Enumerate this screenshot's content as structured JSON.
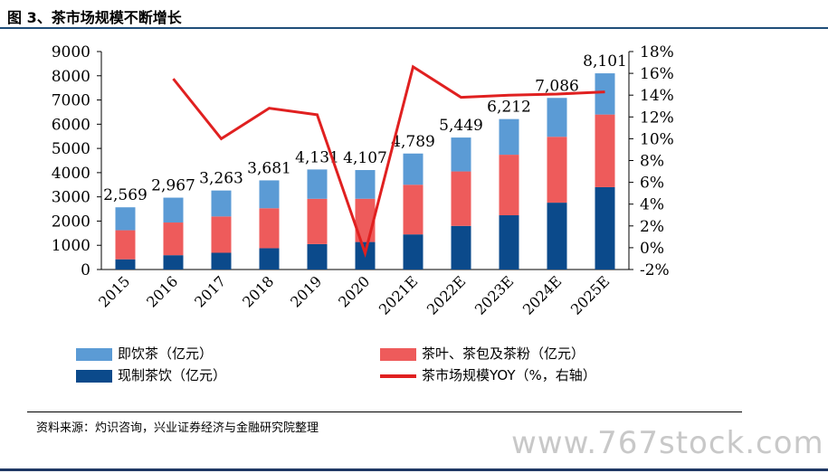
{
  "title": "图 3、茶市场规模不断增长",
  "source": "资料来源：灼识咨询，兴业证券经济与金融研究院整理",
  "watermark": "www.767stock.com",
  "chart_data": {
    "type": "bar",
    "stacked": true,
    "categories": [
      "2015",
      "2016",
      "2017",
      "2018",
      "2019",
      "2020",
      "2021E",
      "2022E",
      "2023E",
      "2024E",
      "2025E"
    ],
    "series": [
      {
        "name": "现制茶饮（亿元）",
        "color": "#0b4a8b",
        "values": [
          422,
          591,
          691,
          880,
          1050,
          1136,
          1450,
          1800,
          2240,
          2760,
          3400
        ]
      },
      {
        "name": "茶叶、茶包及茶粉（亿元）",
        "color": "#ee5b5b",
        "values": [
          1200,
          1350,
          1500,
          1650,
          1870,
          1786,
          2050,
          2250,
          2500,
          2720,
          3000
        ]
      },
      {
        "name": "即饮茶（亿元）",
        "color": "#5b9bd5",
        "values": [
          947,
          1026,
          1072,
          1151,
          1211,
          1185,
          1289,
          1399,
          1472,
          1606,
          1701
        ]
      }
    ],
    "totals": [
      2569,
      2967,
      3263,
      3681,
      4131,
      4107,
      4789,
      5449,
      6212,
      7086,
      8101
    ],
    "total_labels": [
      "2,569",
      "2,967",
      "3,263",
      "3,681",
      "4,131",
      "4,107",
      "4,789",
      "5,449",
      "6,212",
      "7,086",
      "8,101"
    ],
    "line_series": {
      "name": "茶市场规模YOY（%，右轴）",
      "color": "#e02020",
      "values": [
        null,
        15.5,
        10.0,
        12.8,
        12.2,
        -0.5,
        16.6,
        13.8,
        14.0,
        14.1,
        14.3
      ]
    },
    "y_left": {
      "min": 0,
      "max": 9000,
      "ticks": [
        "0",
        "1000",
        "2000",
        "3000",
        "4000",
        "5000",
        "6000",
        "7000",
        "8000",
        "9000"
      ]
    },
    "y_right": {
      "min": -2,
      "max": 18,
      "ticks": [
        "-2%",
        "0%",
        "2%",
        "4%",
        "6%",
        "8%",
        "10%",
        "12%",
        "14%",
        "16%",
        "18%"
      ]
    },
    "legend": [
      {
        "label": "即饮茶（亿元）",
        "color": "#5b9bd5",
        "kind": "bar"
      },
      {
        "label": "茶叶、茶包及茶粉（亿元）",
        "color": "#ee5b5b",
        "kind": "bar"
      },
      {
        "label": "现制茶饮（亿元）",
        "color": "#0b4a8b",
        "kind": "bar"
      },
      {
        "label": "茶市场规模YOY（%，右轴）",
        "color": "#e02020",
        "kind": "line"
      }
    ]
  }
}
